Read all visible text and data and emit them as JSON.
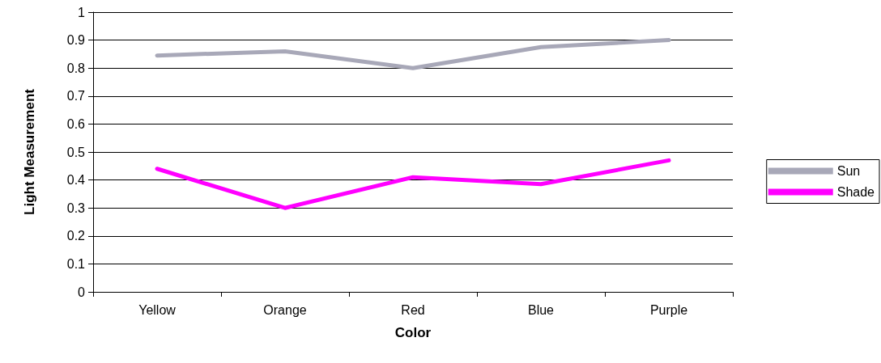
{
  "chart_data": {
    "type": "line",
    "xlabel": "Color",
    "ylabel": "Light Measurement",
    "categories": [
      "Yellow",
      "Orange",
      "Red",
      "Blue",
      "Purple"
    ],
    "series": [
      {
        "name": "Sun",
        "color": "#a8a8b8",
        "values": [
          0.845,
          0.86,
          0.8,
          0.875,
          0.9
        ]
      },
      {
        "name": "Shade",
        "color": "#ff00ff",
        "values": [
          0.44,
          0.3,
          0.41,
          0.385,
          0.47
        ]
      }
    ],
    "ylim": [
      0,
      1
    ],
    "yticks": [
      0,
      0.1,
      0.2,
      0.3,
      0.4,
      0.5,
      0.6,
      0.7,
      0.8,
      0.9,
      1
    ],
    "grid": "y",
    "legend": "right",
    "marker": "none",
    "line_style": "solid"
  }
}
